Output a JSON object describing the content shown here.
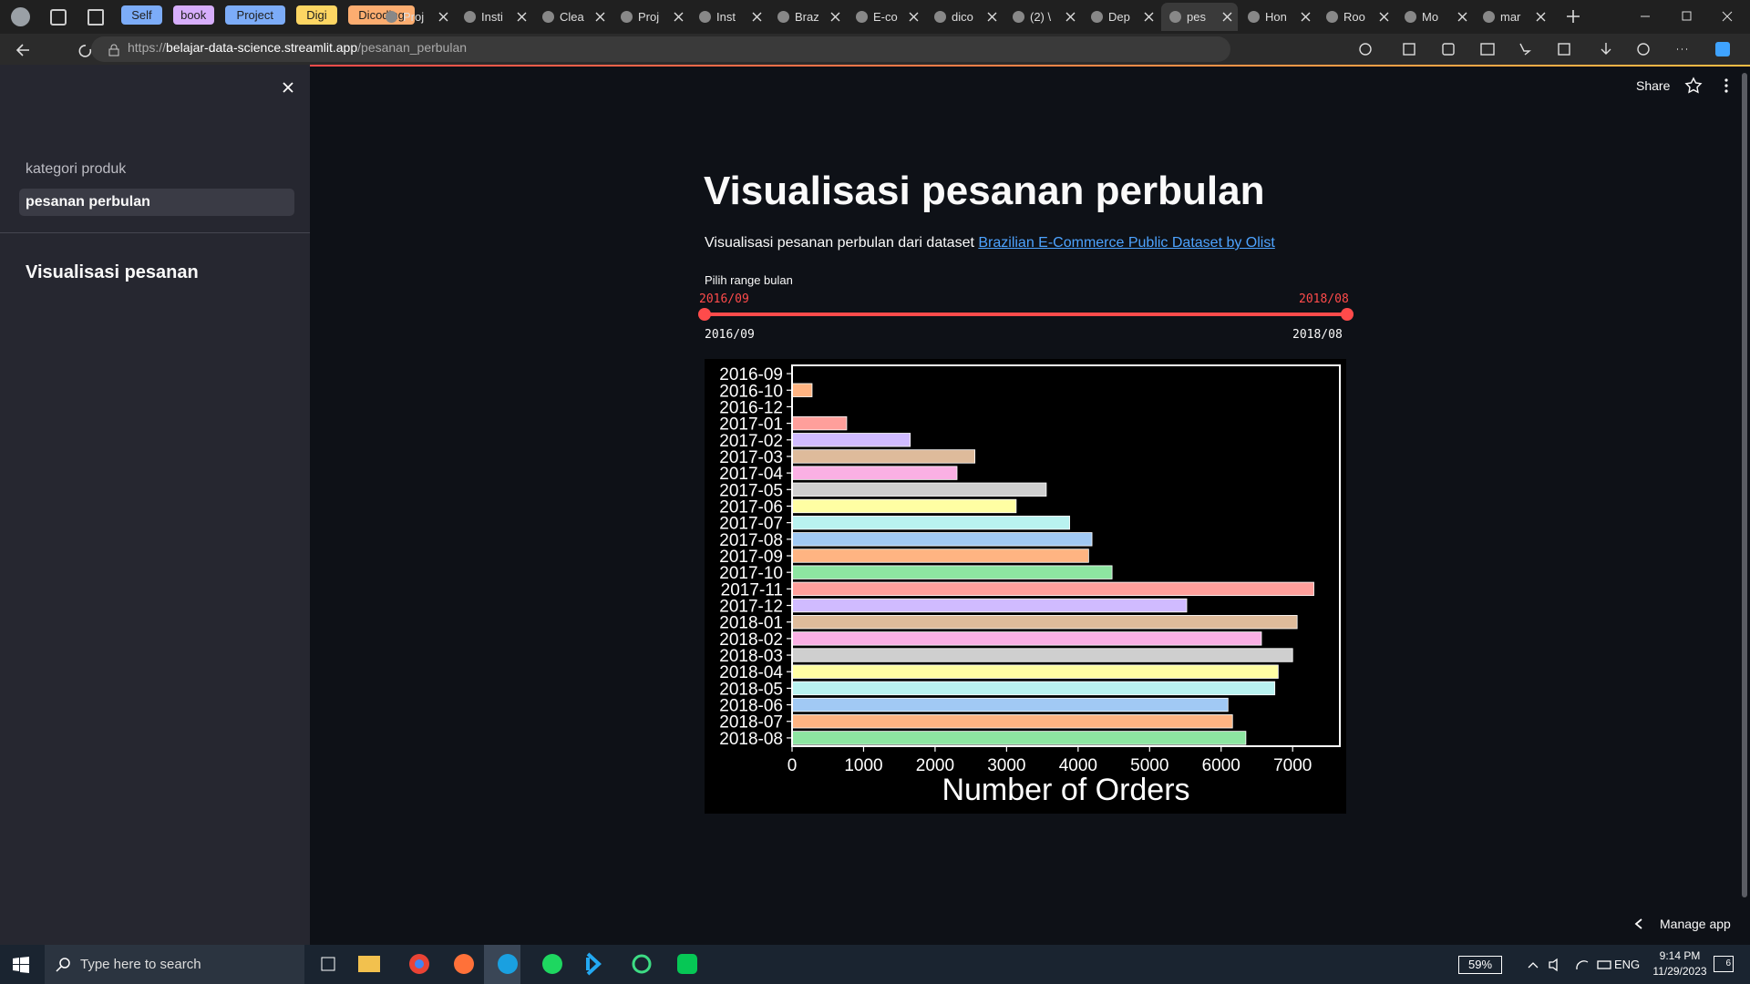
{
  "browser": {
    "tab_groups": [
      {
        "label": "Self",
        "color": "#7cacf8"
      },
      {
        "label": "book",
        "color": "#d7aefb"
      },
      {
        "label": "Project",
        "color": "#7cacf8"
      },
      {
        "label": "Digi",
        "color": "#fdd663"
      },
      {
        "label": "Dicoding",
        "color": "#fcad70"
      }
    ],
    "tabs": [
      "Proj",
      "Insti",
      "Clea",
      "Proj",
      "Inst",
      "Braz",
      "E-co",
      "dico",
      "(2) \\",
      "Dep",
      "pes",
      "Hon",
      "Roo",
      "Mo",
      "mar"
    ],
    "active_tab": 10,
    "url": {
      "scheme": "https://",
      "host": "belajar-data-science.streamlit.app",
      "path": "/pesanan_perbulan"
    }
  },
  "app": {
    "header": {
      "share": "Share"
    },
    "sidebar": {
      "nav": [
        "kategori produk",
        "pesanan perbulan"
      ],
      "active_nav": 1,
      "heading": "Visualisasi pesanan"
    },
    "title": "Visualisasi pesanan perbulan",
    "description": {
      "text": "Visualisasi pesanan perbulan dari dataset",
      "link": "Brazilian E-Commerce Public Dataset by Olist"
    },
    "slider": {
      "label": "Pilih range bulan",
      "start": "2016/09",
      "end": "2018/08",
      "min": "2016/09",
      "max": "2018/08"
    },
    "manage": "Manage app"
  },
  "chart_data": {
    "type": "bar",
    "orientation": "horizontal",
    "categories": [
      "2016-09",
      "2016-10",
      "2016-12",
      "2017-01",
      "2017-02",
      "2017-03",
      "2017-04",
      "2017-05",
      "2017-06",
      "2017-07",
      "2017-08",
      "2017-09",
      "2017-10",
      "2017-11",
      "2017-12",
      "2018-01",
      "2018-02",
      "2018-03",
      "2018-04",
      "2018-05",
      "2018-06",
      "2018-07",
      "2018-08"
    ],
    "values": [
      4,
      280,
      1,
      764,
      1653,
      2557,
      2307,
      3555,
      3134,
      3882,
      4194,
      4147,
      4475,
      7297,
      5519,
      7063,
      6564,
      7000,
      6798,
      6751,
      6096,
      6159,
      6346
    ],
    "palette": [
      "#a1c9f4",
      "#ffb482",
      "#8de5a1",
      "#ff9f9b",
      "#d0bbff",
      "#debb9b",
      "#fab0e4",
      "#cfcfcf",
      "#fffea3",
      "#b9f2f0"
    ],
    "xlabel": "Number of Orders",
    "xlim": [
      0,
      7660
    ],
    "xticks": [
      0,
      1000,
      2000,
      3000,
      4000,
      5000,
      6000,
      7000
    ],
    "background": "#000000"
  },
  "taskbar": {
    "search": "Type here to search",
    "battery": "59%",
    "language": "ENG",
    "time": "9:14 PM",
    "date": "11/29/2023",
    "notifications": "6"
  }
}
